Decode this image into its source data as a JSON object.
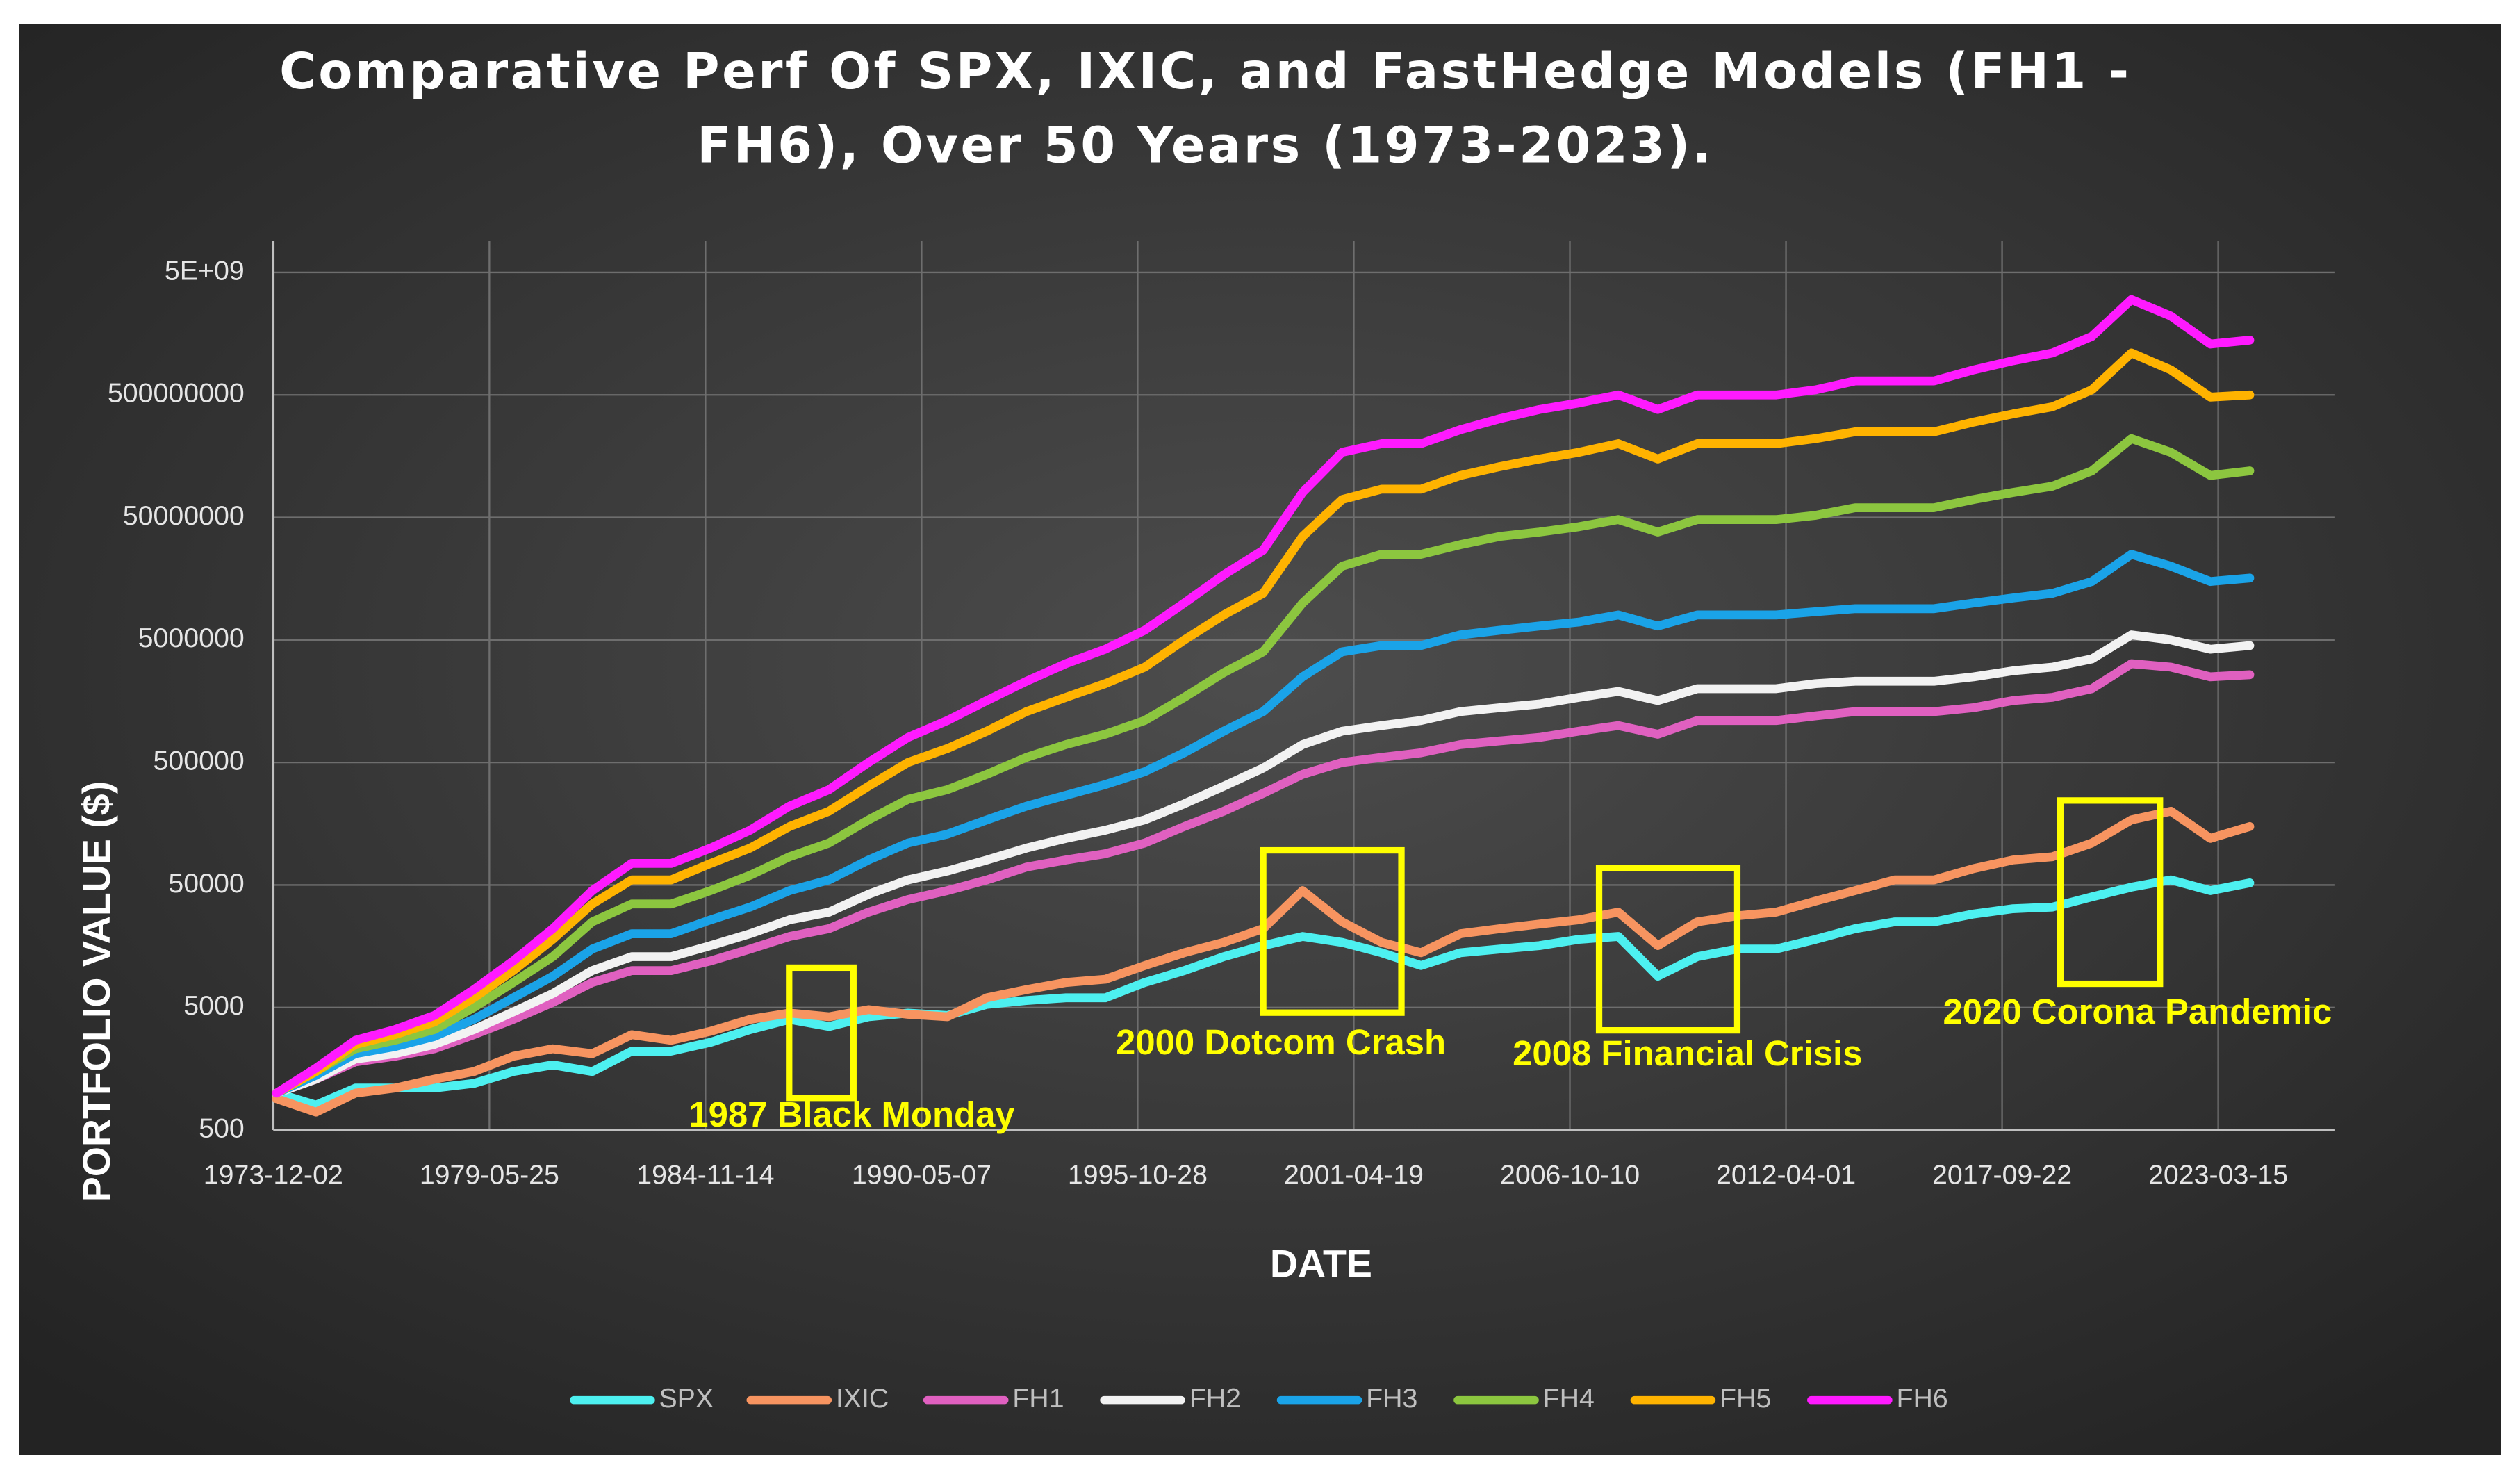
{
  "chart_data": {
    "type": "line",
    "title": "Comparative Perf Of SPX, IXIC, and FastHedge Models (FH1 - FH6), Over 50 Years (1973-2023).",
    "x_label": "DATE",
    "y_label": "PORTFOLIO VALUE ($)",
    "log_scale": true,
    "grid": true,
    "legend": "bottom",
    "x": [
      "1974-01-01",
      "1975-01-01",
      "1976-01-01",
      "1977-01-01",
      "1978-01-01",
      "1979-01-01",
      "1980-01-01",
      "1981-01-01",
      "1982-01-01",
      "1983-01-01",
      "1984-01-01",
      "1985-01-01",
      "1986-01-01",
      "1987-01-01",
      "1988-01-01",
      "1989-01-01",
      "1990-01-01",
      "1991-01-01",
      "1992-01-01",
      "1993-01-01",
      "1994-01-01",
      "1995-01-01",
      "1996-01-01",
      "1997-01-01",
      "1998-01-01",
      "1999-01-01",
      "2000-01-01",
      "2001-01-01",
      "2002-01-01",
      "2003-01-01",
      "2004-01-01",
      "2005-01-01",
      "2006-01-01",
      "2007-01-01",
      "2008-01-01",
      "2009-01-01",
      "2010-01-01",
      "2011-01-01",
      "2012-01-01",
      "2013-01-01",
      "2014-01-01",
      "2015-01-01",
      "2016-01-01",
      "2017-01-01",
      "2018-01-01",
      "2019-01-01",
      "2020-01-01",
      "2021-01-01",
      "2022-01-01",
      "2023-01-01",
      "2024-01-01"
    ],
    "xlim": [
      "1973-12-02",
      "2026-03-01"
    ],
    "xticks": [
      "1973-12-02",
      "1979-05-25",
      "1984-11-14",
      "1990-05-07",
      "1995-10-28",
      "2001-04-19",
      "2006-10-10",
      "2012-04-01",
      "2017-09-22",
      "2023-03-15"
    ],
    "ylim": [
      500,
      9000000000
    ],
    "yticks": [
      500,
      5000,
      50000,
      500000,
      5000000,
      50000000,
      500000000,
      {
        "value": 5000000000,
        "label": "5E+09"
      }
    ],
    "series": [
      {
        "name": "SPX",
        "color": "#4df0f0",
        "values": [
          1000,
          800,
          1100,
          1100,
          1100,
          1200,
          1500,
          1700,
          1500,
          2200,
          2200,
          2600,
          3300,
          4000,
          3500,
          4200,
          4500,
          4300,
          5300,
          5700,
          6000,
          6000,
          8000,
          10000,
          13000,
          16000,
          19000,
          17000,
          14000,
          11000,
          14000,
          15000,
          16000,
          18000,
          19000,
          9000,
          13000,
          15000,
          15000,
          18000,
          22000,
          25000,
          25000,
          29000,
          32000,
          33000,
          40000,
          48000,
          55000,
          45000,
          52000
        ]
      },
      {
        "name": "IXIC",
        "color": "#f79460",
        "values": [
          900,
          700,
          1000,
          1100,
          1300,
          1500,
          2000,
          2300,
          2100,
          3000,
          2700,
          3200,
          4000,
          4500,
          4200,
          4800,
          4400,
          4200,
          6000,
          7000,
          8000,
          8500,
          11000,
          14000,
          17000,
          22000,
          45000,
          25000,
          17000,
          14000,
          20000,
          22000,
          24000,
          26000,
          30000,
          16000,
          25000,
          28000,
          30000,
          37000,
          45000,
          55000,
          55000,
          68000,
          80000,
          85000,
          110000,
          170000,
          200000,
          120000,
          150000
        ]
      },
      {
        "name": "FH1",
        "color": "#e060c0",
        "values": [
          1000,
          1300,
          1800,
          2000,
          2300,
          3000,
          4000,
          5500,
          8000,
          10000,
          10000,
          12000,
          15000,
          19000,
          22000,
          30000,
          38000,
          45000,
          55000,
          70000,
          80000,
          90000,
          110000,
          150000,
          200000,
          280000,
          400000,
          500000,
          550000,
          600000,
          700000,
          750000,
          800000,
          900000,
          1000000,
          850000,
          1100000,
          1100000,
          1100000,
          1200000,
          1300000,
          1300000,
          1300000,
          1400000,
          1600000,
          1700000,
          2000000,
          3200000,
          3000000,
          2500000,
          2600000
        ]
      },
      {
        "name": "FH2",
        "color": "#f2f2f2",
        "values": [
          1000,
          1300,
          1900,
          2100,
          2500,
          3300,
          4600,
          6500,
          10000,
          13000,
          13000,
          16000,
          20000,
          26000,
          30000,
          42000,
          55000,
          65000,
          80000,
          100000,
          120000,
          140000,
          170000,
          230000,
          320000,
          450000,
          700000,
          900000,
          1000000,
          1100000,
          1300000,
          1400000,
          1500000,
          1700000,
          1900000,
          1600000,
          2000000,
          2000000,
          2000000,
          2200000,
          2300000,
          2300000,
          2300000,
          2500000,
          2800000,
          3000000,
          3500000,
          5500000,
          5000000,
          4200000,
          4500000
        ]
      },
      {
        "name": "FH3",
        "color": "#1aa3e8",
        "values": [
          1000,
          1400,
          2100,
          2400,
          2900,
          4000,
          6000,
          9000,
          15000,
          20000,
          20000,
          26000,
          33000,
          45000,
          55000,
          80000,
          110000,
          130000,
          170000,
          220000,
          270000,
          330000,
          420000,
          600000,
          900000,
          1300000,
          2500000,
          4000000,
          4500000,
          4500000,
          5500000,
          6000000,
          6500000,
          7000000,
          8000000,
          6500000,
          8000000,
          8000000,
          8000000,
          8500000,
          9000000,
          9000000,
          9000000,
          10000000,
          11000000,
          12000000,
          15000000,
          25000000,
          20000000,
          15000000,
          16000000
        ]
      },
      {
        "name": "FH4",
        "color": "#8cc63f",
        "values": [
          1000,
          1500,
          2300,
          2700,
          3300,
          5000,
          8000,
          13000,
          25000,
          35000,
          35000,
          45000,
          60000,
          85000,
          110000,
          170000,
          250000,
          300000,
          400000,
          550000,
          700000,
          850000,
          1100000,
          1700000,
          2700000,
          4000000,
          10000000,
          20000000,
          25000000,
          25000000,
          30000000,
          35000000,
          38000000,
          42000000,
          48000000,
          38000000,
          48000000,
          48000000,
          48000000,
          52000000,
          60000000,
          60000000,
          60000000,
          70000000,
          80000000,
          90000000,
          120000000,
          220000000,
          170000000,
          110000000,
          120000000
        ]
      },
      {
        "name": "FH5",
        "color": "#ffb300",
        "values": [
          1000,
          1500,
          2500,
          3000,
          3800,
          6000,
          10000,
          18000,
          35000,
          55000,
          55000,
          75000,
          100000,
          150000,
          200000,
          320000,
          500000,
          650000,
          900000,
          1300000,
          1700000,
          2200000,
          3000000,
          5000000,
          8000000,
          12000000,
          35000000,
          70000000,
          85000000,
          85000000,
          110000000,
          130000000,
          150000000,
          170000000,
          200000000,
          150000000,
          200000000,
          200000000,
          200000000,
          220000000,
          250000000,
          250000000,
          250000000,
          300000000,
          350000000,
          400000000,
          550000000,
          1100000000,
          800000000,
          480000000,
          500000000
        ]
      },
      {
        "name": "FH6",
        "color": "#ff1aff",
        "values": [
          1000,
          1600,
          2700,
          3300,
          4300,
          7000,
          12000,
          22000,
          45000,
          75000,
          75000,
          100000,
          140000,
          220000,
          300000,
          500000,
          800000,
          1100000,
          1600000,
          2300000,
          3200000,
          4200000,
          6000000,
          10000000,
          17000000,
          27000000,
          80000000,
          170000000,
          200000000,
          200000000,
          260000000,
          320000000,
          380000000,
          430000000,
          500000000,
          380000000,
          500000000,
          500000000,
          500000000,
          550000000,
          650000000,
          650000000,
          650000000,
          800000000,
          950000000,
          1100000000,
          1500000000,
          3000000000,
          2200000000,
          1300000000,
          1400000000
        ]
      }
    ],
    "annotations": [
      {
        "text": "1987 Black Monday"
      },
      {
        "text": "2000 Dotcom Crash"
      },
      {
        "text": "2008 Financial Crisis"
      },
      {
        "text": "2020 Corona Pandemic"
      }
    ]
  }
}
